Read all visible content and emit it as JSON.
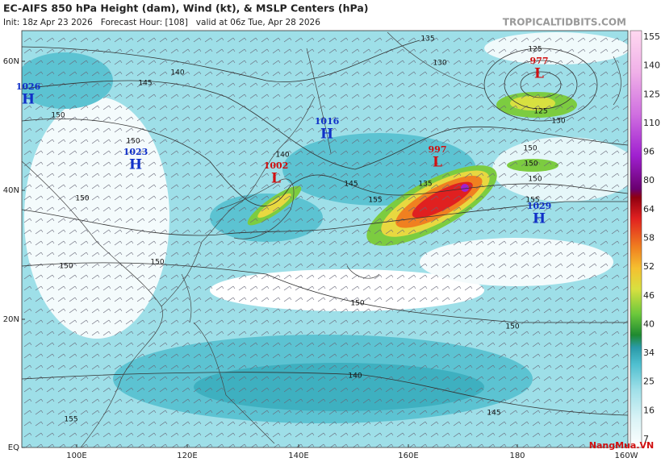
{
  "header": {
    "title": "EC-AIFS 850 hPa Height (dam), Wind (kt), & MSLP Centers (hPa)",
    "subtitle": "Init: 18z Apr 23 2026   Forecast Hour: [108]   valid at 06z Tue, Apr 28 2026",
    "source": "TROPICALTIDBITS.COM"
  },
  "map": {
    "lat_labels": [
      "60N",
      "40N",
      "20N",
      "EQ"
    ],
    "lon_labels": [
      "100E",
      "120E",
      "140E",
      "160E",
      "180",
      "160W"
    ],
    "centers": [
      {
        "type": "H",
        "value": 1026
      },
      {
        "type": "H",
        "value": 1023
      },
      {
        "type": "H",
        "value": 1016
      },
      {
        "type": "L",
        "value": 1002
      },
      {
        "type": "L",
        "value": 997
      },
      {
        "type": "L",
        "value": 977
      },
      {
        "type": "H",
        "value": 1029
      }
    ],
    "contour_labels": [
      135,
      130,
      125,
      125,
      130,
      140,
      145,
      150,
      150,
      140,
      145,
      150,
      150,
      155,
      155,
      150,
      150,
      140,
      145,
      150,
      150,
      150,
      155,
      135,
      150
    ]
  },
  "colorbar": {
    "labels": [
      155,
      140,
      125,
      110,
      96,
      80,
      64,
      58,
      52,
      46,
      40,
      34,
      25,
      16,
      7
    ]
  },
  "watermark": "NangMua.VN"
}
